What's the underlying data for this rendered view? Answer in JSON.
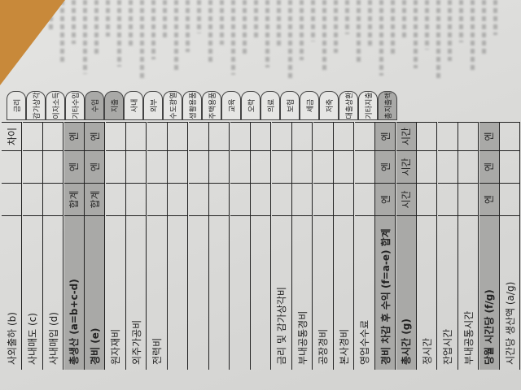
{
  "header_tabs": [
    {
      "label": "금리",
      "shaded": false
    },
    {
      "label": "감가상각",
      "shaded": false
    },
    {
      "label": "이자소득",
      "shaded": false
    },
    {
      "label": "기타수입",
      "shaded": false
    },
    {
      "label": "수입",
      "shaded": true
    },
    {
      "label": "지출",
      "shaded": true
    },
    {
      "label": "사내",
      "shaded": false
    },
    {
      "label": "외부",
      "shaded": false
    },
    {
      "label": "수도광열",
      "shaded": false
    },
    {
      "label": "생활용품",
      "shaded": false
    },
    {
      "label": "주택용품",
      "shaded": false
    },
    {
      "label": "교육",
      "shaded": false
    },
    {
      "label": "오락",
      "shaded": false
    },
    {
      "label": "의료",
      "shaded": false
    },
    {
      "label": "보험",
      "shaded": false
    },
    {
      "label": "세금",
      "shaded": false
    },
    {
      "label": "저축",
      "shaded": false
    },
    {
      "label": "대출상환",
      "shaded": false
    },
    {
      "label": "기타지출",
      "shaded": false
    },
    {
      "label": "총지출액",
      "shaded": true
    }
  ],
  "table": {
    "rows": [
      {
        "label": "사외출하 (b)",
        "shaded": false,
        "c1": "",
        "c2": "",
        "c3": "차이"
      },
      {
        "label": "사내매도 (c)",
        "shaded": false,
        "c1": "",
        "c2": "",
        "c3": ""
      },
      {
        "label": "사내매입 (d)",
        "shaded": false,
        "c1": "",
        "c2": "",
        "c3": ""
      },
      {
        "label": "총생산 (a=b+c-d)",
        "shaded": true,
        "c1": "합계",
        "c2": "엔",
        "c3": "엔"
      },
      {
        "label": "경비 (e)",
        "shaded": true,
        "c1": "합계",
        "c2": "엔",
        "c3": "엔"
      },
      {
        "label": "원자재비",
        "shaded": false,
        "c1": "",
        "c2": "",
        "c3": ""
      },
      {
        "label": "외주가공비",
        "shaded": false,
        "c1": "",
        "c2": "",
        "c3": ""
      },
      {
        "label": "전력비",
        "shaded": false,
        "c1": "",
        "c2": "",
        "c3": ""
      },
      {
        "label": "",
        "shaded": false,
        "c1": "",
        "c2": "",
        "c3": ""
      },
      {
        "label": "",
        "shaded": false,
        "c1": "",
        "c2": "",
        "c3": ""
      },
      {
        "label": "",
        "shaded": false,
        "c1": "",
        "c2": "",
        "c3": ""
      },
      {
        "label": "",
        "shaded": false,
        "c1": "",
        "c2": "",
        "c3": ""
      },
      {
        "label": "",
        "shaded": false,
        "c1": "",
        "c2": "",
        "c3": ""
      },
      {
        "label": "금리 및 감가상각비",
        "shaded": false,
        "c1": "",
        "c2": "",
        "c3": ""
      },
      {
        "label": "부내공통경비",
        "shaded": false,
        "c1": "",
        "c2": "",
        "c3": ""
      },
      {
        "label": "공장경비",
        "shaded": false,
        "c1": "",
        "c2": "",
        "c3": ""
      },
      {
        "label": "본사경비",
        "shaded": false,
        "c1": "",
        "c2": "",
        "c3": ""
      },
      {
        "label": "영업수수료",
        "shaded": false,
        "c1": "",
        "c2": "",
        "c3": ""
      },
      {
        "label": "경비 차감 후 수익 (f=a-e) 합계",
        "shaded": true,
        "c1": "엔",
        "c2": "엔",
        "c3": "엔"
      },
      {
        "label": "총시간 (g)",
        "shaded": true,
        "c1": "시간",
        "c2": "시간",
        "c3": "시간"
      },
      {
        "label": "정시간",
        "shaded": false,
        "c1": "",
        "c2": "",
        "c3": ""
      },
      {
        "label": "잔업시간",
        "shaded": false,
        "c1": "",
        "c2": "",
        "c3": ""
      },
      {
        "label": "부내공통시간",
        "shaded": false,
        "c1": "",
        "c2": "",
        "c3": ""
      },
      {
        "label": "당월 시간당 (f/g)",
        "shaded": true,
        "c1": "엔",
        "c2": "엔",
        "c3": "엔"
      },
      {
        "label": "시간당 생산액 (a/g)",
        "shaded": false,
        "c1": "",
        "c2": "",
        "c3": ""
      }
    ]
  },
  "colors": {
    "shade": "#a9a9a7",
    "paper": "#dcdcda",
    "desk": "#c8893a"
  }
}
